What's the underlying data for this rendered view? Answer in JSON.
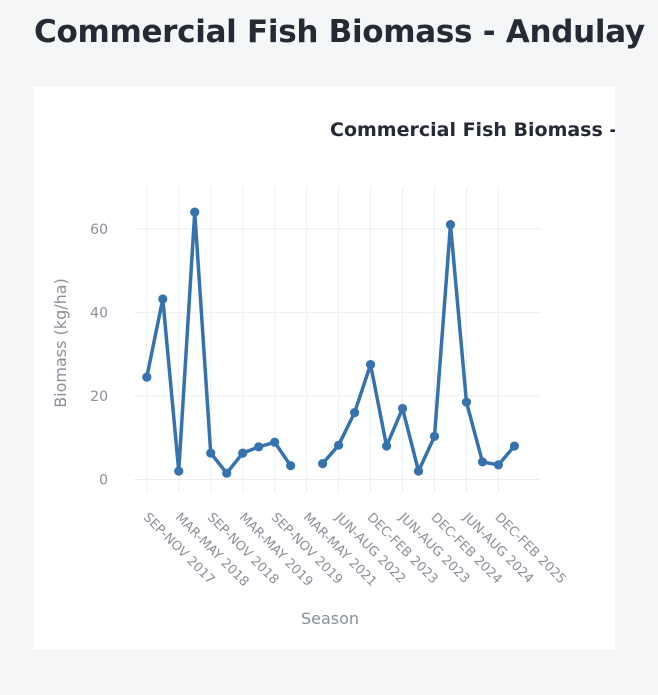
{
  "page": {
    "title": "Commercial Fish Biomass - Andulay"
  },
  "chart_data": {
    "type": "line",
    "title": "Commercial Fish Biomass - Andulay",
    "xlabel": "Season",
    "ylabel": "Biomass (kg/ha)",
    "ylim": [
      -3,
      70
    ],
    "yticks": [
      0,
      20,
      40,
      60
    ],
    "x": [
      0,
      1,
      2,
      3,
      4,
      5,
      6,
      7,
      8,
      9,
      11,
      12,
      13,
      14,
      15,
      16,
      17,
      18,
      19,
      20,
      21,
      22,
      23
    ],
    "x_range": [
      -0.8,
      24.6
    ],
    "tick_positions": [
      0,
      2,
      4,
      6,
      8,
      10,
      12,
      14,
      16,
      18,
      20,
      22
    ],
    "tick_labels": [
      "SEP-NOV 2017",
      "MAR-MAY 2018",
      "SEP-NOV 2018",
      "MAR-MAY 2019",
      "SEP-NOV 2019",
      "MAR-MAY 2021",
      "JUN-AUG 2022",
      "DEC-FEB 2023",
      "JUN-AUG 2023",
      "DEC-FEB 2024",
      "JUN-AUG 2024",
      "DEC-FEB 2025"
    ],
    "series": [
      {
        "color": "#3672ad",
        "values": [
          24.5,
          43.2,
          2.0,
          64.0,
          6.3,
          1.5,
          6.3,
          7.8,
          8.9,
          3.3,
          3.8,
          8.2,
          16.0,
          27.5,
          8.0,
          17.0,
          2.0,
          10.3,
          61.0,
          18.5,
          4.2,
          3.5,
          8.0
        ]
      }
    ],
    "grid": true,
    "legend": "none"
  }
}
